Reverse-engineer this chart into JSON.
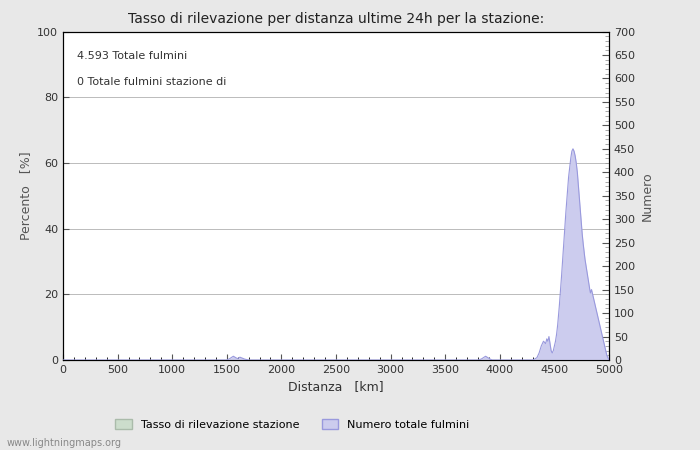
{
  "title": "Tasso di rilevazione per distanza ultime 24h per la stazione:",
  "xlabel": "Distanza   [km]",
  "ylabel_left": "Percento   [%]",
  "ylabel_right": "Numero",
  "annotation_line1": "4.593 Totale fulmini",
  "annotation_line2": "0 Totale fulmini stazione di",
  "xlim": [
    0,
    5000
  ],
  "ylim_left": [
    0,
    100
  ],
  "ylim_right": [
    0,
    700
  ],
  "x_ticks": [
    0,
    500,
    1000,
    1500,
    2000,
    2500,
    3000,
    3500,
    4000,
    4500,
    5000
  ],
  "y_ticks_left": [
    0,
    20,
    40,
    60,
    80,
    100
  ],
  "y_ticks_right": [
    0,
    50,
    100,
    150,
    200,
    250,
    300,
    350,
    400,
    450,
    500,
    550,
    600,
    650,
    700
  ],
  "bg_color": "#e8e8e8",
  "plot_bg_color": "#ffffff",
  "grid_color": "#bbbbbb",
  "line_color": "#9999dd",
  "fill_color": "#ccccee",
  "watermark": "www.lightningmaps.org",
  "legend_green_label": "Tasso di rilevazione stazione",
  "legend_blue_label": "Numero totale fulmini",
  "legend_green_fill": "#ccddcc",
  "legend_green_edge": "#aabbaa"
}
